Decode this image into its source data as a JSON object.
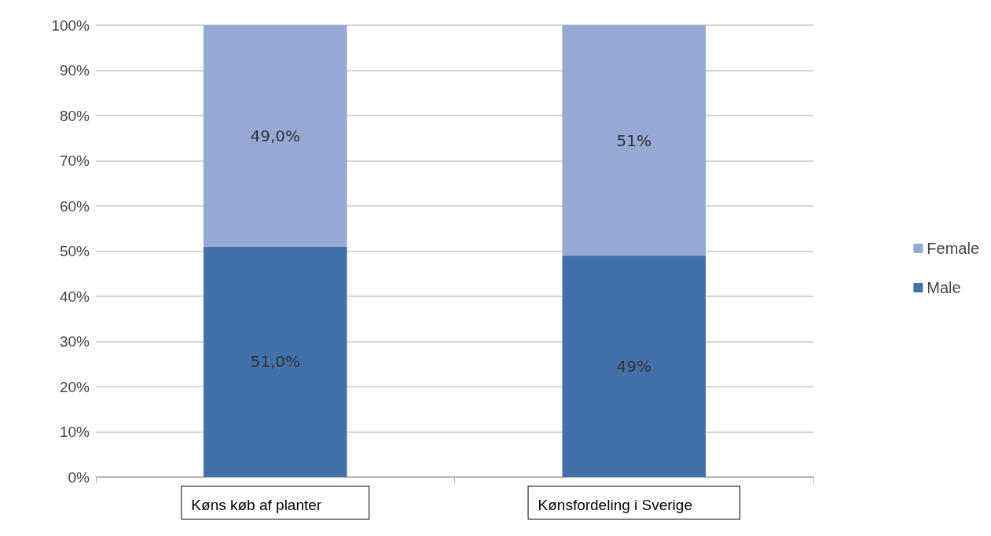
{
  "chart_data": {
    "type": "bar",
    "stacked": true,
    "categories": [
      "Køns køb af planter",
      "Kønsfordeling i Sverige"
    ],
    "series": [
      {
        "name": "Male",
        "color": "#4470aa",
        "values": [
          51,
          49
        ],
        "value_labels": [
          "51,0%",
          "49%"
        ]
      },
      {
        "name": "Female",
        "color": "#95a9d4",
        "values": [
          49,
          51
        ],
        "value_labels": [
          "49,0%",
          "51%"
        ]
      }
    ],
    "ylim": [
      0,
      100
    ],
    "yticks": [
      {
        "value": 0,
        "label": "0%"
      },
      {
        "value": 10,
        "label": "10%"
      },
      {
        "value": 20,
        "label": "20%"
      },
      {
        "value": 30,
        "label": "30%"
      },
      {
        "value": 40,
        "label": "40%"
      },
      {
        "value": 50,
        "label": "50%"
      },
      {
        "value": 60,
        "label": "60%"
      },
      {
        "value": 70,
        "label": "70%"
      },
      {
        "value": 80,
        "label": "80%"
      },
      {
        "value": 90,
        "label": "90%"
      },
      {
        "value": 100,
        "label": "100%"
      }
    ],
    "grid": "y",
    "legend": "right"
  }
}
